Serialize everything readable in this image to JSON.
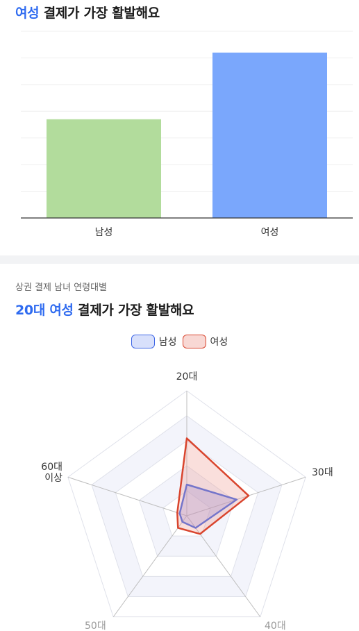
{
  "gender_section": {
    "title_highlight": "여성",
    "title_rest": " 결제가 가장 활발해요",
    "colors": {
      "male": "#b2dc9c",
      "female": "#7aa7fc"
    }
  },
  "age_section": {
    "subtitle": "상권 결제 남녀 연령대별",
    "title_highlight": "20대 여성",
    "title_rest": " 결제가 가장 활발해요",
    "legend": [
      {
        "label": "남성",
        "fill": "#d8e0fb",
        "stroke": "#3f67e6"
      },
      {
        "label": "여성",
        "fill": "#f8d8d4",
        "stroke": "#d9452e"
      }
    ]
  },
  "chart_data": [
    {
      "type": "bar",
      "categories": [
        "남성",
        "여성"
      ],
      "values": [
        37,
        62
      ],
      "ylim": [
        0,
        70
      ],
      "grid": true
    },
    {
      "type": "radar",
      "axes": [
        "20대",
        "30대",
        "40대",
        "50대",
        "60대\n이상"
      ],
      "max": 100,
      "levels": 5,
      "series": [
        {
          "name": "남성",
          "values": [
            25,
            42,
            12,
            6,
            6
          ]
        },
        {
          "name": "여성",
          "values": [
            62,
            52,
            18,
            12,
            8
          ]
        }
      ]
    }
  ]
}
